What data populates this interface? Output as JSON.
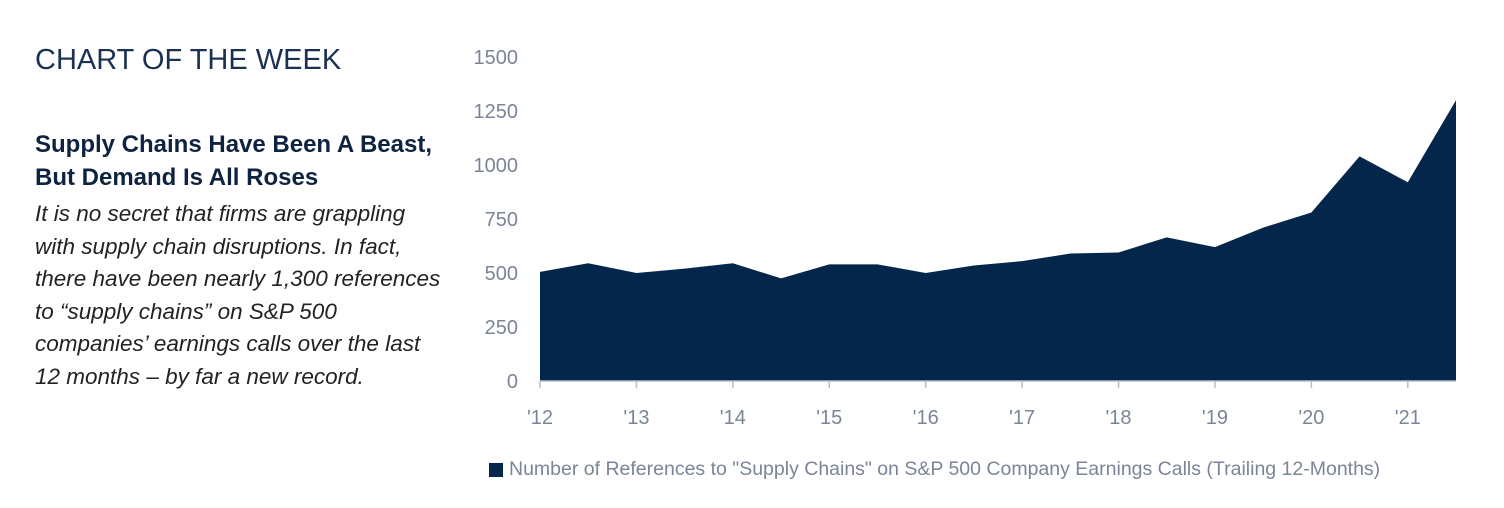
{
  "section_label": "CHART OF THE WEEK",
  "headline": "Supply Chains Have Been A Beast, But Demand Is All Roses",
  "body": "It is no secret that firms are grappling with supply chain disruptions. In fact, there have been nearly 1,300 references to “supply chains” on S&P 500 companies’ earnings calls over the last 12 months – by far a new record.",
  "colors": {
    "area": "#03264a",
    "axis_text": "#7a8597",
    "title": "#1b3153"
  },
  "chart_data": {
    "type": "area",
    "title": "",
    "xlabel": "",
    "ylabel": "",
    "ylim": [
      0,
      1500
    ],
    "y_ticks": [
      "0",
      "250",
      "500",
      "750",
      "1000",
      "1250",
      "1500"
    ],
    "x_ticks": [
      "'12",
      "'13",
      "'14",
      "'15",
      "'16",
      "'17",
      "'18",
      "'19",
      "'20",
      "'21"
    ],
    "grid": false,
    "legend_position": "bottom",
    "series": [
      {
        "name": "Number of References to \"Supply Chains\" on S&P 500 Company Earnings Calls (Trailing 12-Months)",
        "x": [
          2012.0,
          2012.5,
          2013.0,
          2013.5,
          2014.0,
          2014.5,
          2015.0,
          2015.5,
          2016.0,
          2016.5,
          2017.0,
          2017.5,
          2018.0,
          2018.5,
          2019.0,
          2019.5,
          2020.0,
          2020.5,
          2021.0,
          2021.5
        ],
        "values": [
          505,
          545,
          500,
          520,
          545,
          475,
          540,
          540,
          500,
          535,
          555,
          590,
          595,
          665,
          620,
          710,
          780,
          1040,
          920,
          1300
        ]
      }
    ]
  }
}
